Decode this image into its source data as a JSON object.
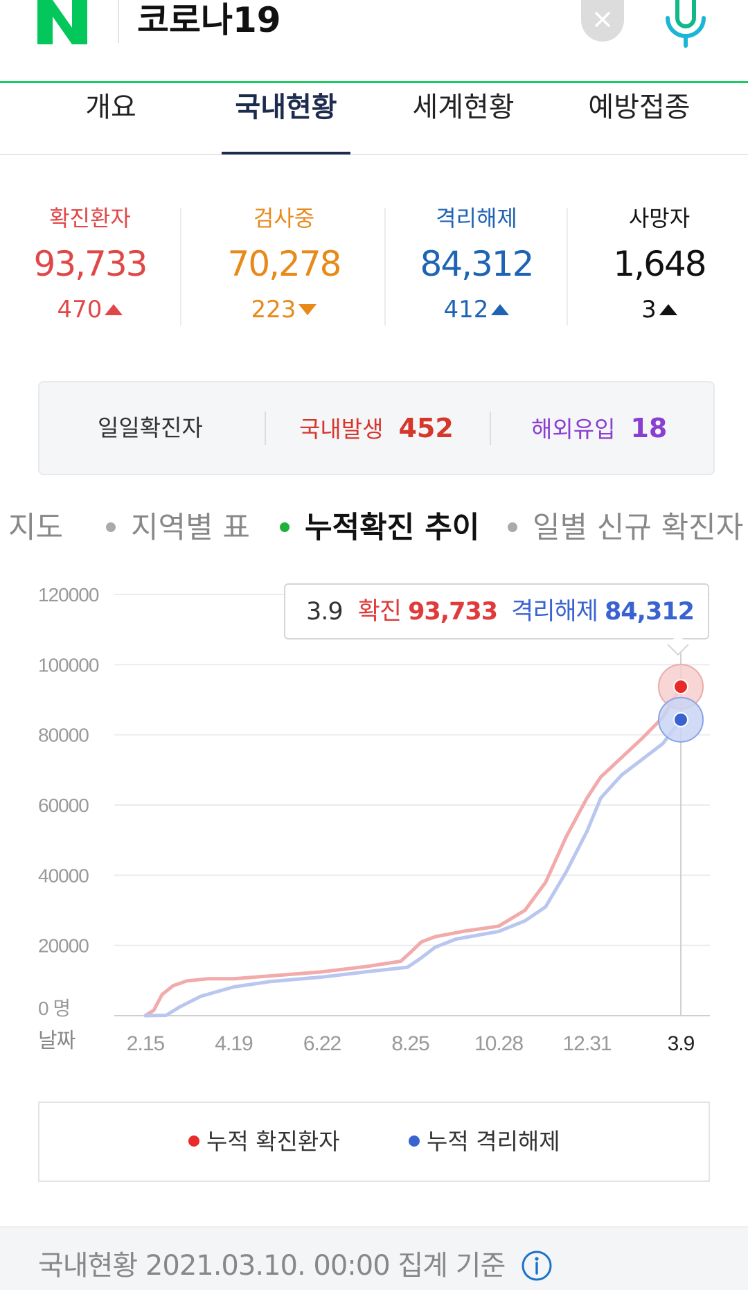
{
  "header": {
    "query": "코로나19"
  },
  "tabs": [
    {
      "label": "개요"
    },
    {
      "label": "국내현황"
    },
    {
      "label": "세계현황"
    },
    {
      "label": "예방접종"
    }
  ],
  "stats": [
    {
      "label": "확진환자",
      "value": "93,733",
      "change": "470",
      "direction": "up",
      "color": "#e04848"
    },
    {
      "label": "검사중",
      "value": "70,278",
      "change": "223",
      "direction": "down",
      "color": "#e88a1a"
    },
    {
      "label": "격리해제",
      "value": "84,312",
      "change": "412",
      "direction": "up",
      "color": "#1f63b4"
    },
    {
      "label": "사망자",
      "value": "1,648",
      "change": "3",
      "direction": "up",
      "color": "#111111"
    }
  ],
  "daily": {
    "label": "일일확진자",
    "domestic_label": "국내발생",
    "domestic_value": "452",
    "overseas_label": "해외유입",
    "overseas_value": "18"
  },
  "chart_nav": [
    {
      "label": "지도"
    },
    {
      "label": "지역별 표"
    },
    {
      "label": "누적확진 추이"
    },
    {
      "label": "일별 신규 확진자"
    }
  ],
  "tooltip": {
    "date": "3.9",
    "confirmed_label": "확진",
    "confirmed_value": "93,733",
    "released_label": "격리해제",
    "released_value": "84,312"
  },
  "legend": [
    {
      "label": "누적 확진환자",
      "color": "#e82a2a"
    },
    {
      "label": "누적 격리해제",
      "color": "#3a63d1"
    }
  ],
  "footer": {
    "text": "국내현황 2021.03.10. 00:00 집계 기준"
  },
  "chart_data": {
    "type": "line",
    "x_label": "날짜",
    "y_unit_label": "0 명",
    "y_ticks": [
      0,
      20000,
      40000,
      60000,
      80000,
      100000,
      120000
    ],
    "ylim": [
      0,
      120000
    ],
    "x_ticks": [
      "2.15",
      "4.19",
      "6.22",
      "8.25",
      "10.28",
      "12.31",
      "3.9"
    ],
    "x_tick_index": [
      0,
      64,
      128,
      192,
      256,
      320,
      388
    ],
    "grid": true,
    "series": [
      {
        "name": "누적 확진환자",
        "color": "#f2aaaa",
        "x_index": [
          0,
          6,
          12,
          20,
          30,
          45,
          64,
          90,
          128,
          160,
          185,
          192,
          200,
          210,
          230,
          256,
          275,
          290,
          305,
          320,
          330,
          345,
          360,
          375,
          388
        ],
        "values": [
          30,
          1500,
          6000,
          8500,
          9900,
          10500,
          10500,
          11300,
          12500,
          14000,
          15500,
          18000,
          21000,
          22500,
          24000,
          25500,
          30000,
          38000,
          51000,
          62000,
          68000,
          73500,
          79000,
          85000,
          93733
        ]
      },
      {
        "name": "누적 격리해제",
        "color": "#b9c7f0",
        "x_index": [
          0,
          15,
          25,
          40,
          64,
          90,
          128,
          160,
          190,
          200,
          210,
          225,
          256,
          275,
          290,
          305,
          320,
          330,
          345,
          360,
          375,
          388
        ],
        "values": [
          0,
          100,
          2500,
          5500,
          8200,
          9700,
          11000,
          12500,
          13800,
          16500,
          19500,
          21800,
          24000,
          27000,
          31000,
          41000,
          52500,
          62000,
          68500,
          73000,
          77500,
          84312
        ]
      }
    ]
  }
}
